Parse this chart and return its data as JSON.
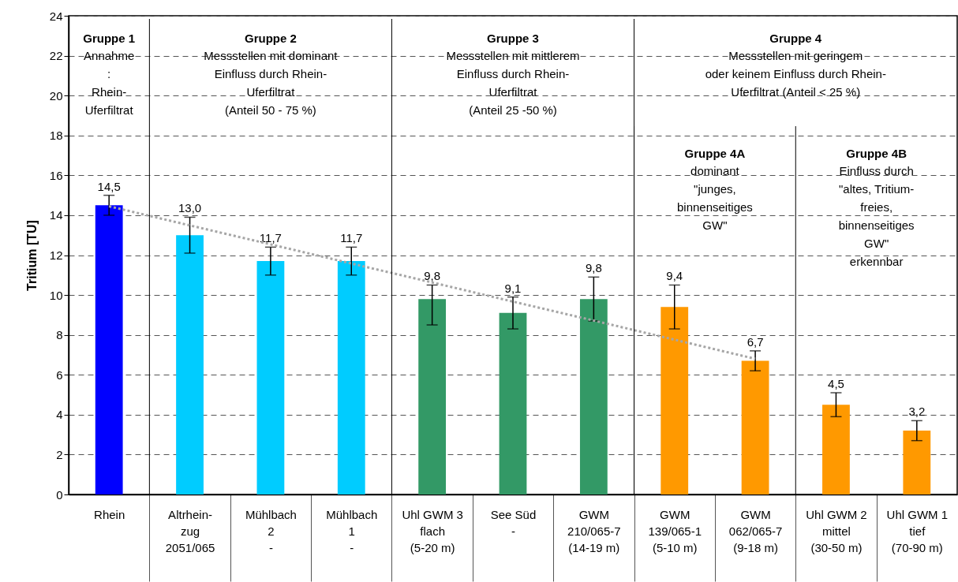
{
  "chart_data": {
    "type": "bar",
    "ylabel": "Tritium [TU]",
    "categories": [
      "Rhein",
      "Altrhein-\nzug\n\n2051/065",
      "Mühlbach\n2\n\n-",
      "Mühlbach\n1\n\n-",
      "Uhl GWM 3\nflach\n\n(5-20 m)",
      "See Süd\n\n\n-",
      "GWM\n210/065-7\n\n(14-19 m)",
      "GWM\n139/065-1\n\n(5-10 m)",
      "GWM\n062/065-7\n\n(9-18 m)",
      "Uhl GWM 2\nmittel\n\n(30-50 m)",
      "Uhl GWM 1\ntief\n\n(70-90 m)"
    ],
    "series": [
      {
        "colors": [
          "#0000ff",
          "#00ccff",
          "#00ccff",
          "#00ccff",
          "#339966",
          "#339966",
          "#339966",
          "#ff9900",
          "#ff9900",
          "#ff9900",
          "#ff9900"
        ],
        "values": [
          14.5,
          13.0,
          11.7,
          11.7,
          9.8,
          9.1,
          9.8,
          9.4,
          6.7,
          4.5,
          3.2
        ],
        "errors": [
          [
            14.0,
            15.0
          ],
          [
            12.1,
            13.9
          ],
          [
            11.0,
            12.4
          ],
          [
            11.0,
            12.4
          ],
          [
            8.5,
            10.5
          ],
          [
            8.3,
            9.9
          ],
          [
            8.7,
            10.9
          ],
          [
            8.3,
            10.5
          ],
          [
            6.2,
            7.2
          ],
          [
            3.9,
            5.1
          ],
          [
            2.7,
            3.7
          ]
        ],
        "value_labels": [
          "14,5",
          "13,0",
          "11,7",
          "11,7",
          "9,8",
          "9,1",
          "9,8",
          "9,4",
          "6,7",
          "4,5",
          "3,2"
        ]
      },
      {
        "type": "line",
        "color": "#a6a6a6",
        "line_style": "dotted",
        "values": [
          14.45,
          13.49,
          12.54,
          11.58,
          10.63,
          9.67,
          8.72,
          7.76,
          6.8,
          null,
          null
        ]
      }
    ],
    "ylim": [
      0,
      24
    ],
    "yticks": [
      0,
      2,
      4,
      6,
      8,
      10,
      12,
      14,
      16,
      18,
      20,
      22,
      24
    ],
    "grid": "y",
    "annotations": [
      "Gruppe 1\nAnnahme\n:\nRhein-\nUferfiltrat",
      "Gruppe 2\nMessstellen mit dominant\nEinfluss durch Rhein-\nUferfiltrat\n(Anteil 50 - 75 %)",
      "Gruppe 3\nMessstellen mit mittlerem\nEinfluss durch Rhein-\nUferfiltrat\n(Anteil 25 -50 %)",
      "Gruppe 4\nMessstellen mit geringem\noder keinem Einfluss durch Rhein-\nUferfiltrat (Anteil < 25 %)",
      "Gruppe 4A\ndominant\n\"junges,\nbinnenseitiges\nGW\"",
      "Gruppe 4B\nEinfluss durch\n\"altes, Tritium-\nfreies,\nbinnenseitiges\nGW\"\nerkennbar"
    ]
  }
}
